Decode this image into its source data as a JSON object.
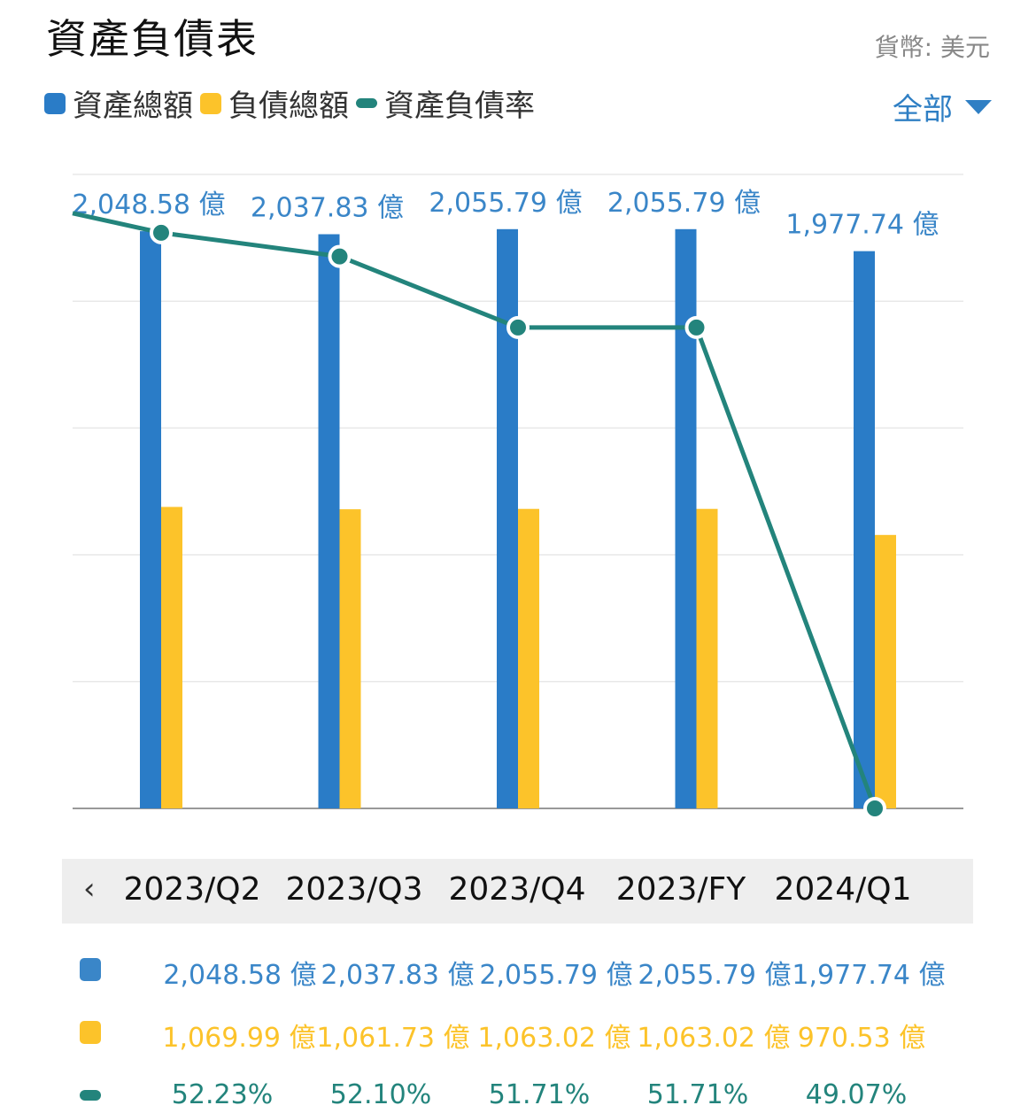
{
  "header": {
    "title": "資產負債表",
    "currency": "貨幣: 美元"
  },
  "filter": {
    "label": "全部"
  },
  "colors": {
    "assets": "#2a7cc7",
    "liabilities": "#fcc32a",
    "ratio": "#23847c",
    "label_blue": "#3a86c8",
    "grid": "#e8e8e8"
  },
  "chart_data": {
    "type": "bar",
    "categories": [
      "2023/Q2",
      "2023/Q3",
      "2023/Q4",
      "2023/FY",
      "2024/Q1"
    ],
    "series": [
      {
        "name": "資產總額",
        "type": "bar",
        "values": [
          2048.58,
          2037.83,
          2055.79,
          2055.79,
          1977.74
        ],
        "labels": [
          "2,048.58 億",
          "2,037.83 億",
          "2,055.79 億",
          "2,055.79 億",
          "1,977.74 億"
        ]
      },
      {
        "name": "負債總額",
        "type": "bar",
        "values": [
          1069.99,
          1061.73,
          1063.02,
          1063.02,
          970.53
        ],
        "labels": [
          "1,069.99 億",
          "1,061.73 億",
          "1,063.02 億",
          "1,063.02 億",
          "970.53 億"
        ]
      },
      {
        "name": "資產負債率",
        "type": "line",
        "values": [
          52.23,
          52.1,
          51.71,
          51.71,
          49.07
        ],
        "labels": [
          "52.23%",
          "52.10%",
          "51.71%",
          "51.71%",
          "49.07%"
        ]
      }
    ],
    "unit": "億",
    "ylim": [
      0,
      2250
    ],
    "y2lim": [
      49.07,
      52.55
    ],
    "grid": true,
    "legend": "top-left"
  }
}
